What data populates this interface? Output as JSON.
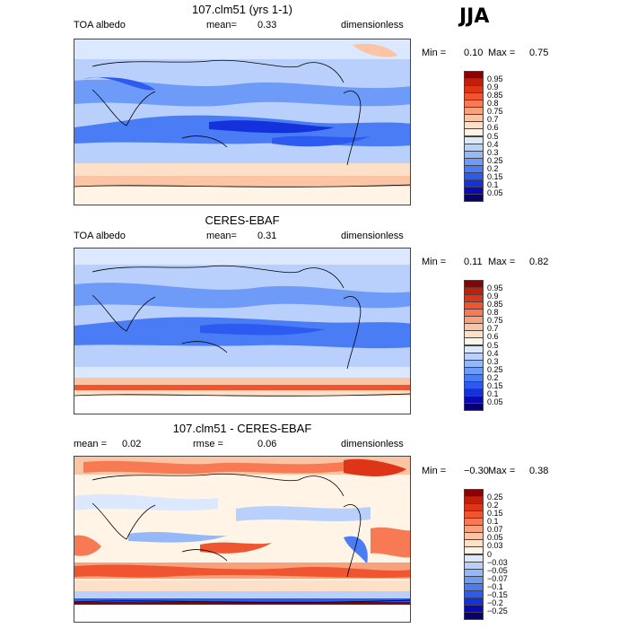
{
  "season": "JJA",
  "panels": [
    {
      "id": "model",
      "title": "107.clm51 (yrs 1-1)",
      "left_label": "TOA albedo",
      "mid_label": "mean=",
      "mid_value": "0.33",
      "right_label": "dimensionless",
      "min_label": "Min =",
      "min_value": "0.10",
      "max_label": "Max =",
      "max_value": "0.75",
      "palette": "albedo"
    },
    {
      "id": "obs",
      "title": "CERES-EBAF",
      "left_label": "TOA albedo",
      "mid_label": "mean=",
      "mid_value": "0.31",
      "right_label": "dimensionless",
      "min_label": "Min =",
      "min_value": "0.11",
      "max_label": "Max =",
      "max_value": "0.82",
      "palette": "albedo"
    },
    {
      "id": "diff",
      "title": "107.clm51 - CERES-EBAF",
      "left_label": "mean =",
      "left_value": "0.02",
      "mid_label": "rmse =",
      "mid_value": "0.06",
      "right_label": "dimensionless",
      "min_label": "Min =",
      "min_value": "−0.30",
      "max_label": "Max =",
      "max_value": "0.38",
      "palette": "diff"
    }
  ],
  "colorbars": {
    "albedo": {
      "colors": [
        "#08006e",
        "#0a0ab4",
        "#1432dc",
        "#2d5af0",
        "#4a7df5",
        "#6e9bf7",
        "#94b8f8",
        "#b8d0fb",
        "#dbe8fd",
        "#fff4e6",
        "#fde0c8",
        "#fbc4a4",
        "#f9a07c",
        "#f77a55",
        "#ee5530",
        "#de3418",
        "#c0200a",
        "#8b0000"
      ],
      "ticks": [
        "0.95",
        "0.9",
        "0.85",
        "0.8",
        "0.75",
        "0.7",
        "0.6",
        "0.5",
        "0.4",
        "0.3",
        "0.25",
        "0.2",
        "0.15",
        "0.1",
        "0.05"
      ]
    },
    "diff": {
      "colors": [
        "#08006e",
        "#0a0ab4",
        "#1432dc",
        "#2d5af0",
        "#4a7df5",
        "#6e9bf7",
        "#94b8f8",
        "#b8d0fb",
        "#dbe8fd",
        "#fff4e6",
        "#fde0c8",
        "#fbc4a4",
        "#f9a07c",
        "#f77a55",
        "#ee5530",
        "#de3418",
        "#c0200a",
        "#8b0000"
      ],
      "ticks": [
        "0.25",
        "0.2",
        "0.15",
        "0.1",
        "0.07",
        "0.05",
        "0.03",
        "0",
        "−0.03",
        "−0.05",
        "−0.07",
        "−0.1",
        "−0.15",
        "−0.2",
        "−0.25"
      ]
    }
  },
  "chart_data": [
    {
      "type": "heatmap",
      "title": "107.clm51 (yrs 1-1)",
      "variable": "TOA albedo",
      "units": "dimensionless",
      "mean": 0.33,
      "min": 0.1,
      "max": 0.75
    },
    {
      "type": "heatmap",
      "title": "CERES-EBAF",
      "variable": "TOA albedo",
      "units": "dimensionless",
      "mean": 0.31,
      "min": 0.11,
      "max": 0.82
    },
    {
      "type": "heatmap",
      "title": "107.clm51 - CERES-EBAF",
      "units": "dimensionless",
      "mean": 0.02,
      "rmse": 0.06,
      "min": -0.3,
      "max": 0.38
    }
  ]
}
